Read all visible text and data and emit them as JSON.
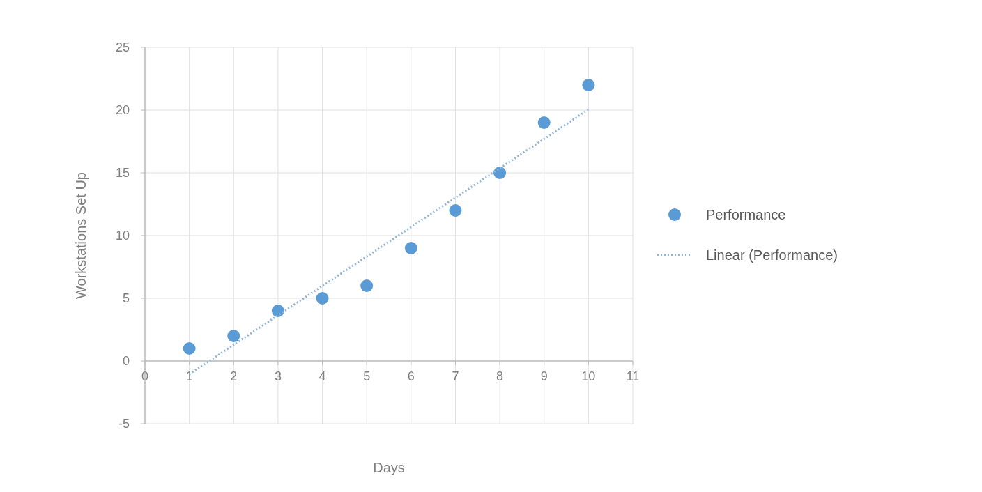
{
  "chart_data": {
    "type": "scatter",
    "xlabel": "Days",
    "ylabel": "Workstations Set Up",
    "xlim": [
      0,
      11
    ],
    "ylim": [
      -5,
      25
    ],
    "xticks": [
      0,
      1,
      2,
      3,
      4,
      5,
      6,
      7,
      8,
      9,
      10,
      11
    ],
    "yticks": [
      -5,
      0,
      5,
      10,
      15,
      20,
      25
    ],
    "grid": true,
    "legend": "right",
    "marker": "circle",
    "series": [
      {
        "name": "Performance",
        "color": "#5b9bd5",
        "x": [
          1,
          2,
          3,
          4,
          5,
          6,
          7,
          8,
          9,
          10
        ],
        "values": [
          1,
          2,
          4,
          5,
          6,
          9,
          12,
          15,
          19,
          22
        ]
      },
      {
        "name": "Linear (Performance)",
        "type": "line",
        "color": "#8fb4d9",
        "line_style": "dotted",
        "marker": "none",
        "x": [
          1,
          10
        ],
        "values": [
          -1.05,
          20.05
        ]
      }
    ]
  }
}
